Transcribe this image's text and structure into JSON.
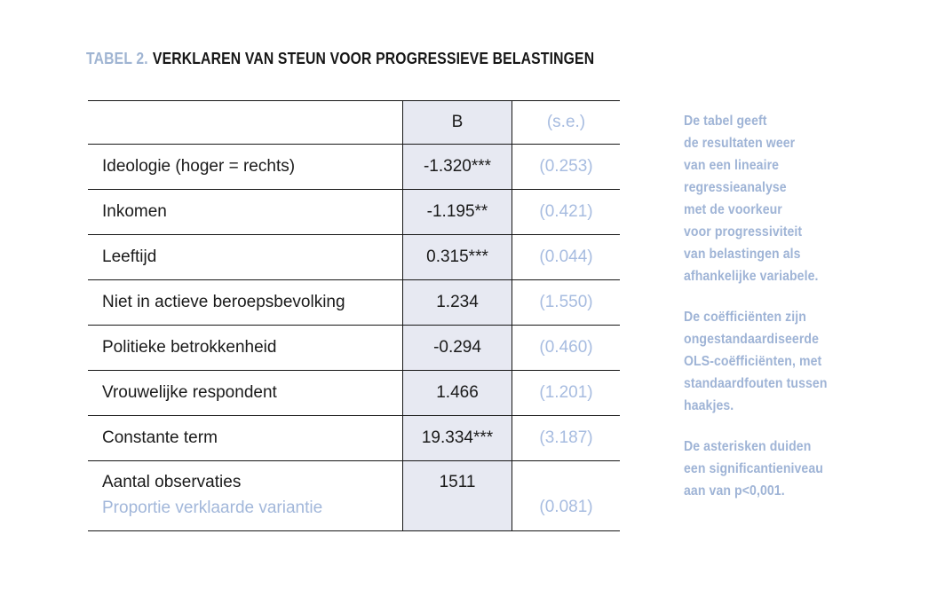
{
  "title": {
    "label": "TABEL 2.",
    "text": "VERKLAREN VAN STEUN VOOR PROGRESSIEVE BELASTINGEN"
  },
  "table": {
    "header": {
      "label": "",
      "b": "B",
      "se": "(s.e.)"
    },
    "rows": [
      {
        "label": "Ideologie (hoger = rechts)",
        "b": "-1.320***",
        "se": "(0.253)"
      },
      {
        "label": "Inkomen",
        "b": "-1.195**",
        "se": "(0.421)"
      },
      {
        "label": "Leeftijd",
        "b": "0.315***",
        "se": "(0.044)"
      },
      {
        "label": "Niet in actieve beroepsbevolking",
        "b": "1.234",
        "se": "(1.550)"
      },
      {
        "label": "Politieke betrokkenheid",
        "b": "-0.294",
        "se": "(0.460)"
      },
      {
        "label": "Vrouwelijke respondent",
        "b": "1.466",
        "se": "(1.201)"
      },
      {
        "label": "Constante term",
        "b": "19.334***",
        "se": "(3.187)"
      }
    ],
    "footer": {
      "label_line1": "Aantal observaties",
      "label_line2": "Proportie verklaarde variantie",
      "b": "1511",
      "se": "(0.081)"
    }
  },
  "notes": {
    "p1": "De tabel geeft\nde resultaten weer\nvan een lineaire\nregressieanalyse\nmet de voorkeur\nvoor progressiviteit\nvan belastingen als\nafhankelijke variabele.",
    "p2": "De coëfficiënten zijn\nongestandaardiseerde\nOLS-coëfficiënten, met\nstandaardfouten tussen\nhaakjes.",
    "p3": "De asterisken duiden\neen significantieniveau\naan van p<0,001."
  },
  "colors": {
    "accent_blue": "#a2b7da",
    "title_blue": "#9fb4d2",
    "column_shade": "#e7e9f2",
    "text": "#1a1a1a",
    "border": "#161616"
  }
}
